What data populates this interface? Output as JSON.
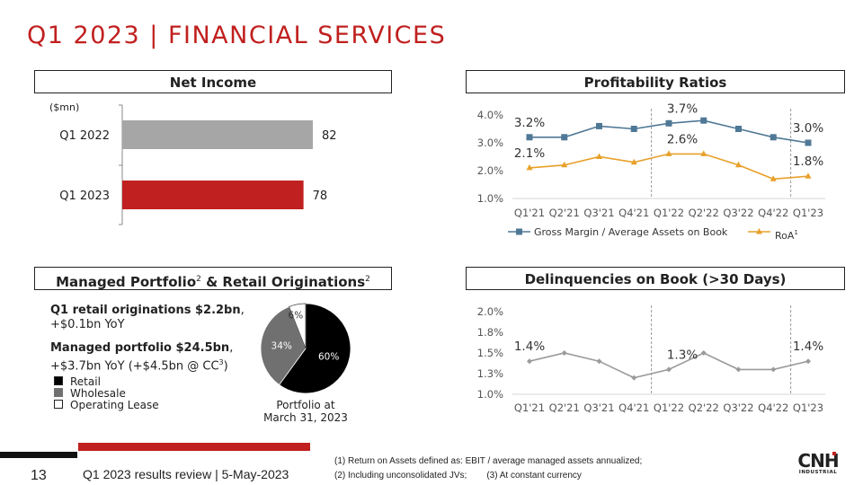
{
  "title": "Q1 2023 | FINANCIAL SERVICES",
  "sections": {
    "net_income": "Net Income",
    "profitability": "Profitability Ratios",
    "portfolio_a": "Managed Portfolio",
    "portfolio_sup": "2",
    "portfolio_b": " & Retail Originations",
    "delinquencies": "Delinquencies on Book (>30 Days)"
  },
  "portfolio_text": {
    "line1_bold": "Q1 retail originations $2.2bn",
    "line1_comma": ",",
    "line2": "+$0.1bn YoY",
    "line3_bold": "Managed portfolio $24.5bn",
    "line3_comma": ",",
    "line4a": "+$3.7bn YoY (+$4.5bn @ CC",
    "line4_sup": "3",
    "line4b": ")",
    "pie_caption_1": "Portfolio at",
    "pie_caption_2": "March 31, 2023"
  },
  "chart_data": [
    {
      "type": "bar",
      "orientation": "horizontal",
      "unit_label": "($mn)",
      "categories": [
        "Q1 2022",
        "Q1 2023"
      ],
      "values": [
        82,
        78
      ],
      "colors": [
        "#a6a6a6",
        "#c0201f"
      ]
    },
    {
      "type": "line",
      "categories": [
        "Q1'21",
        "Q2'21",
        "Q3'21",
        "Q4'21",
        "Q1'22",
        "Q2'22",
        "Q3'22",
        "Q4'22",
        "Q1'23"
      ],
      "yticks": [
        "1.0%",
        "2.0%",
        "3.0%",
        "4.0%"
      ],
      "ylim": [
        1.0,
        4.0
      ],
      "series": [
        {
          "name": "Gross Margin / Average Assets on Book",
          "values": [
            3.2,
            3.2,
            3.6,
            3.5,
            3.7,
            3.8,
            3.5,
            3.2,
            3.0
          ],
          "color": "#4f7896",
          "marker": "square",
          "labels": [
            {
              "index": 0,
              "text": "3.2%"
            },
            {
              "index": 4,
              "text": "3.7%"
            },
            {
              "index": 8,
              "text": "3.0%"
            }
          ]
        },
        {
          "name": "RoA",
          "name_sup": "1",
          "values": [
            2.1,
            2.2,
            2.5,
            2.3,
            2.6,
            2.6,
            2.2,
            1.7,
            1.8
          ],
          "color": "#e8a02a",
          "marker": "triangle",
          "labels": [
            {
              "index": 0,
              "text": "2.1%"
            },
            {
              "index": 4,
              "text": "2.6%"
            },
            {
              "index": 8,
              "text": "1.8%"
            }
          ]
        }
      ],
      "dividers_after": [
        3,
        7
      ],
      "legend": "bottom"
    },
    {
      "type": "pie",
      "slices": [
        {
          "name": "Retail",
          "value": 60,
          "label": "60%",
          "color": "#000000"
        },
        {
          "name": "Wholesale",
          "value": 34,
          "label": "34%",
          "color": "#707070"
        },
        {
          "name": "Operating Lease",
          "value": 6,
          "label": "6%",
          "color": "#ffffff"
        }
      ],
      "legend": "left"
    },
    {
      "type": "line",
      "categories": [
        "Q1'21",
        "Q2'21",
        "Q3'21",
        "Q4'21",
        "Q1'22",
        "Q2'22",
        "Q3'22",
        "Q4'22",
        "Q1'23"
      ],
      "yticks": [
        "1.0%",
        "1.3%",
        "1.5%",
        "1.8%",
        "2.0%"
      ],
      "ylim": [
        1.0,
        2.0
      ],
      "series": [
        {
          "values": [
            1.4,
            1.5,
            1.4,
            1.2,
            1.3,
            1.5,
            1.3,
            1.3,
            1.4
          ],
          "color": "#9a9a9a",
          "marker": "diamond",
          "labels": [
            {
              "index": 0,
              "text": "1.4%"
            },
            {
              "index": 4,
              "text": "1.3%"
            },
            {
              "index": 8,
              "text": "1.4%"
            }
          ]
        }
      ],
      "dividers_after": [
        3,
        7
      ]
    }
  ],
  "footer": {
    "page": "13",
    "title": "Q1 2023 results review | 5-May-2023",
    "note1": "(1) Return on Assets defined as: EBIT / average managed assets annualized;",
    "note2": "(2) Including unconsolidated JVs;",
    "note3": "(3) At constant currency",
    "logo": "CNH INDUSTRIAL"
  },
  "colors": {
    "accent": "#c0201f"
  }
}
